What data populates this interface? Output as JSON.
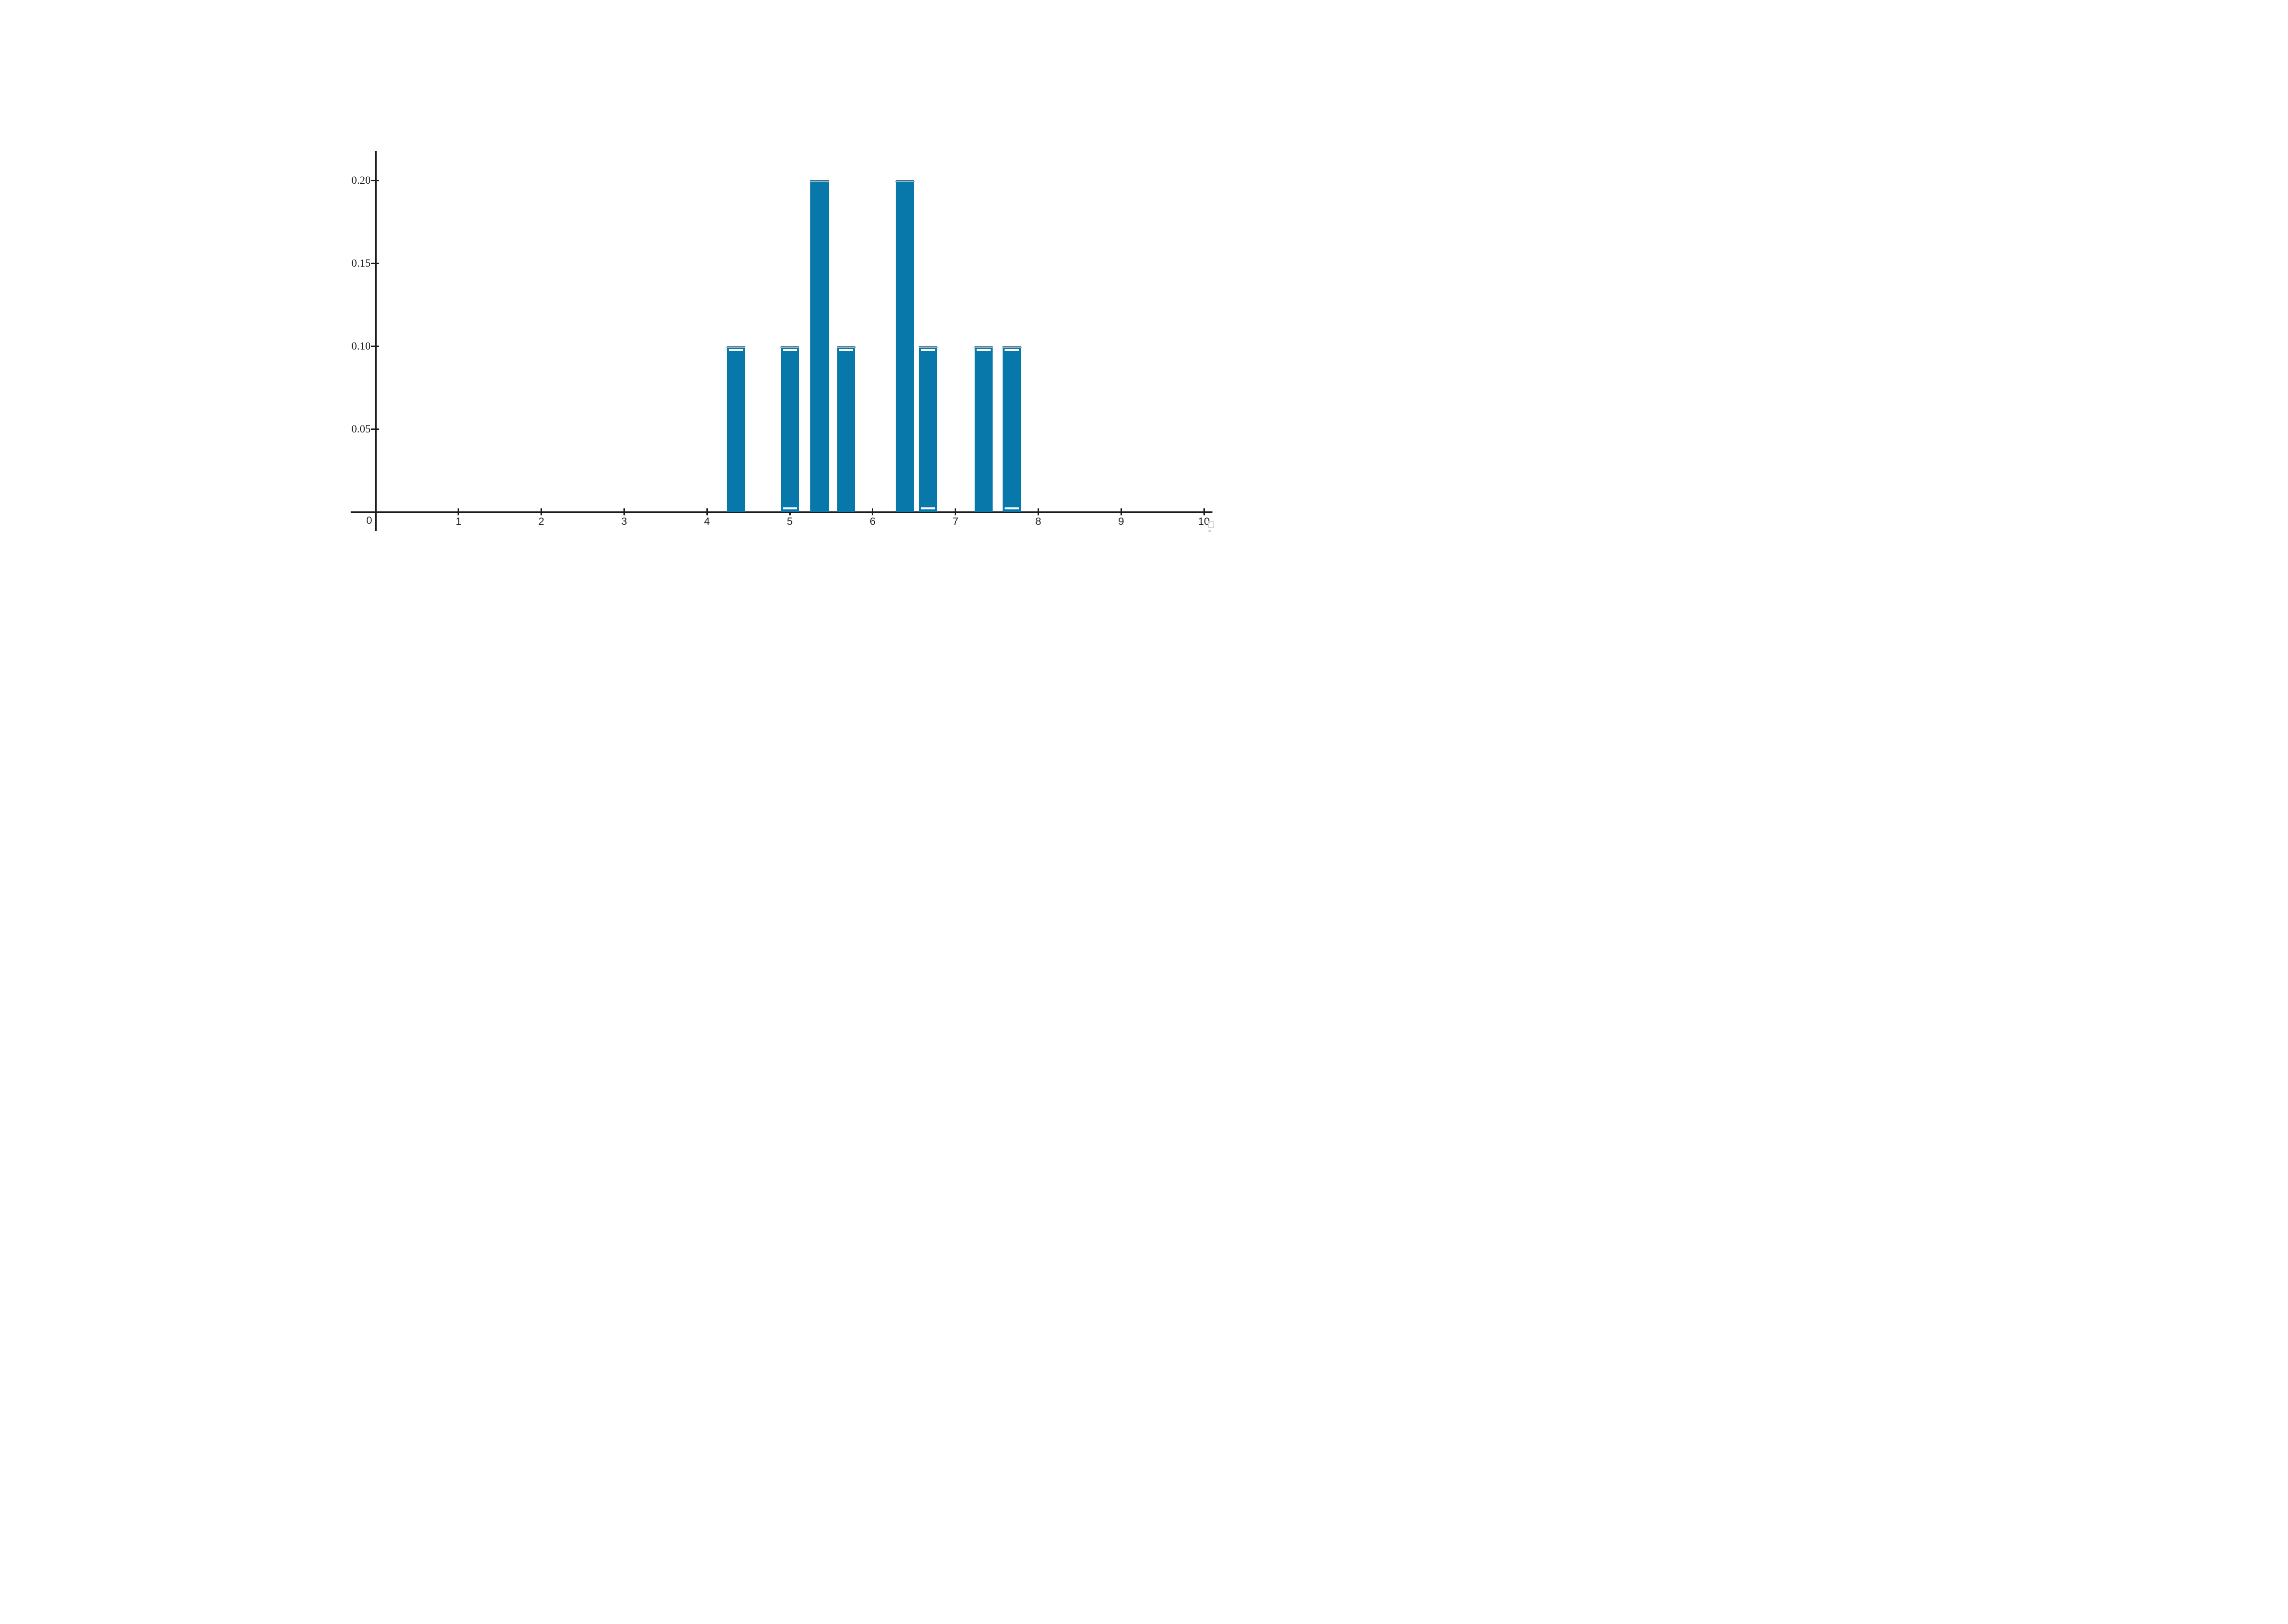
{
  "page": {
    "background_color": "#ffffff",
    "title": ""
  },
  "chart_data": {
    "type": "bar",
    "title": "",
    "xlabel": "",
    "ylabel": "",
    "x": [
      4.35,
      5.0,
      5.36,
      5.68,
      6.39,
      6.67,
      7.34,
      7.68
    ],
    "values": [
      0.1,
      0.1,
      0.2,
      0.1,
      0.2,
      0.1,
      0.1,
      0.1
    ],
    "bar_width": 0.22,
    "xlim": [
      0,
      10.1
    ],
    "ylim": [
      0,
      0.218
    ],
    "grid": false,
    "legend": null,
    "x_tick_values": [
      1,
      2,
      3,
      4,
      5,
      6,
      7,
      8,
      9,
      10
    ],
    "x_tick_labels": [
      "1",
      "2",
      "3",
      "4",
      "5",
      "6",
      "7",
      "8",
      "9",
      "10"
    ],
    "y_tick_values": [
      0.05,
      0.1,
      0.15,
      0.2
    ],
    "y_tick_labels": [
      "0.05",
      "0.10",
      "0.15",
      "0.20"
    ],
    "origin_label": "0",
    "colors": {
      "bar": "#0878aa",
      "bar_top_cap": "#adadad",
      "white_marker": "#ffffff",
      "axis": "#1c1c1c",
      "tick_label": "#1c1c1c"
    },
    "markers": {
      "gray_cap_on_all_bar_tops": true,
      "white_top_dash_x": [
        4.35,
        5.0,
        5.68,
        6.67,
        7.34,
        7.68
      ],
      "white_bottom_dash_x": [
        5.0,
        6.67,
        7.68
      ]
    }
  }
}
